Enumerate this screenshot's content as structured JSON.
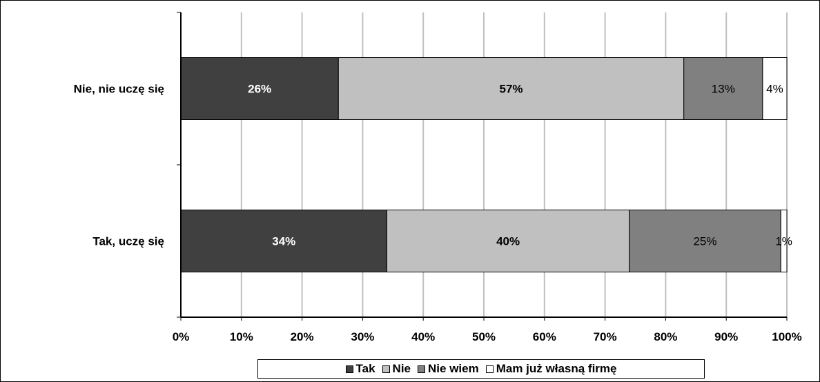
{
  "chart_data": {
    "type": "bar",
    "orientation": "horizontal",
    "stacked": "percent",
    "categories": [
      "Nie, nie uczę się",
      "Tak, uczę się"
    ],
    "series": [
      {
        "name": "Tak",
        "values": [
          26,
          34
        ],
        "labels": [
          "26%",
          "34%"
        ],
        "color": "#404040",
        "label_color": "#ffffff",
        "label_bold": true
      },
      {
        "name": "Nie",
        "values": [
          57,
          40
        ],
        "labels": [
          "57%",
          "40%"
        ],
        "color": "#c0c0c0",
        "label_color": "#000000",
        "label_bold": true
      },
      {
        "name": "Nie wiem",
        "values": [
          13,
          25
        ],
        "labels": [
          "13%",
          "25%"
        ],
        "color": "#808080",
        "label_color": "#000000",
        "label_bold": false
      },
      {
        "name": "Mam już własną firmę",
        "values": [
          4,
          1
        ],
        "labels": [
          "4%",
          "1%"
        ],
        "color": "#ffffff",
        "label_color": "#000000",
        "label_bold": false
      }
    ],
    "xticks": [
      "0%",
      "10%",
      "20%",
      "30%",
      "40%",
      "50%",
      "60%",
      "70%",
      "80%",
      "90%",
      "100%"
    ],
    "xlim": [
      0,
      100
    ],
    "grid": true,
    "legend_position": "bottom",
    "title": "",
    "xlabel": "",
    "ylabel": ""
  }
}
